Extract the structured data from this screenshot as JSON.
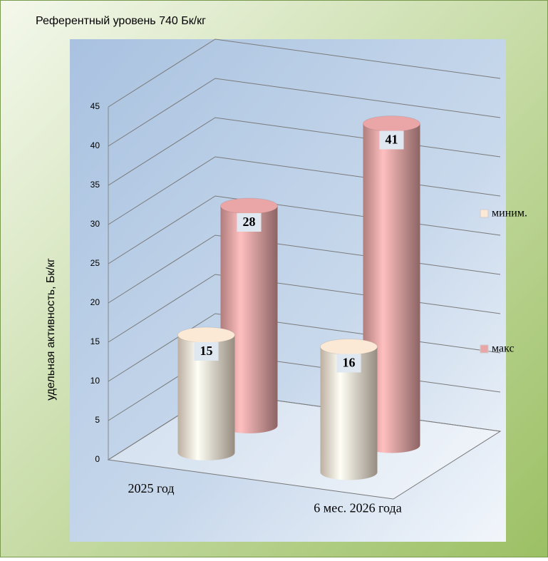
{
  "chart_data": {
    "type": "bar3d",
    "title": "Референтный  уровень  740 Бк/кг",
    "y_label": "удельная активность,  Бк/кг",
    "categories": [
      "2025 год",
      "6 мес. 2026 года"
    ],
    "series": [
      {
        "name": "миним.",
        "color": "#fbe9d6",
        "values": [
          15,
          16
        ]
      },
      {
        "name": "макс",
        "color": "#eaa6a6",
        "values": [
          28,
          41
        ]
      }
    ],
    "ylim": [
      0,
      45
    ],
    "yticks": [
      0,
      5,
      10,
      15,
      20,
      25,
      30,
      35,
      40,
      45
    ],
    "grid": true,
    "legend": "right"
  }
}
